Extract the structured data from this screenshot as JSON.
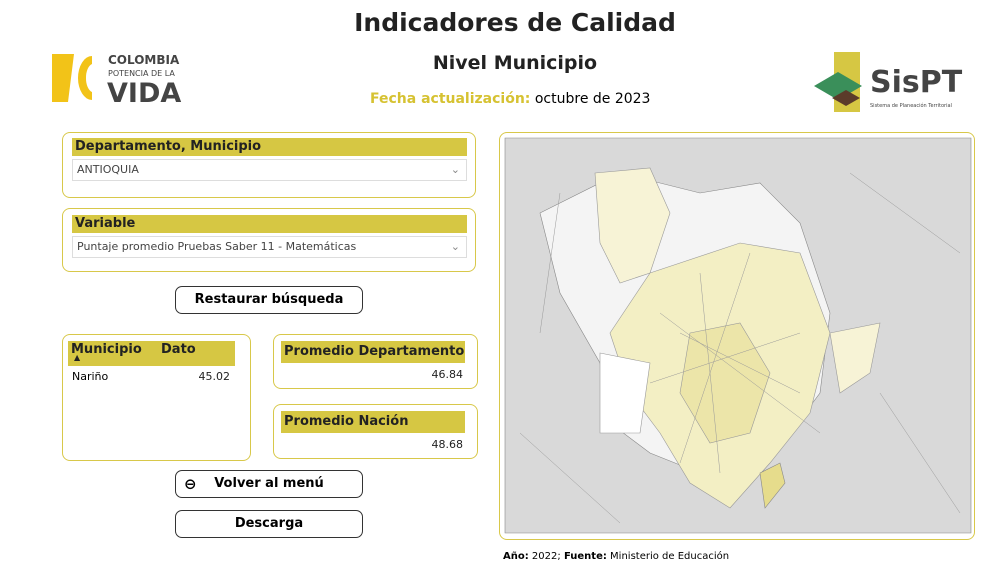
{
  "header": {
    "title": "Indicadores de Calidad",
    "subtitle": "Nivel Municipio",
    "date_label": "Fecha actualización:",
    "date_value": "octubre de 2023"
  },
  "logos": {
    "colombia": [
      "COLOMBIA",
      "POTENCIA DE LA",
      "VIDA"
    ],
    "sispt": {
      "name": "SisPT",
      "tagline": "Sistema de Planeación Territorial"
    }
  },
  "filters": [
    {
      "label": "Departamento, Municipio",
      "value": "ANTIOQUIA"
    },
    {
      "label": "Variable",
      "value": "Puntaje promedio Pruebas Saber 11 - Matemáticas"
    }
  ],
  "buttons": {
    "reset": "Restaurar búsqueda",
    "back": "Volver al menú",
    "download": "Descarga"
  },
  "table": {
    "columns": [
      "Municipio",
      "Dato"
    ],
    "rows": [
      [
        "Nariño",
        45.02
      ]
    ]
  },
  "cards": [
    {
      "title": "Promedio Departamento",
      "value": 46.84
    },
    {
      "title": "Promedio Nación",
      "value": 48.68
    }
  ],
  "footer": {
    "year_label": "Año:",
    "year": "2022;",
    "source_label": "Fuente:",
    "source": "Ministerio de Educación"
  }
}
